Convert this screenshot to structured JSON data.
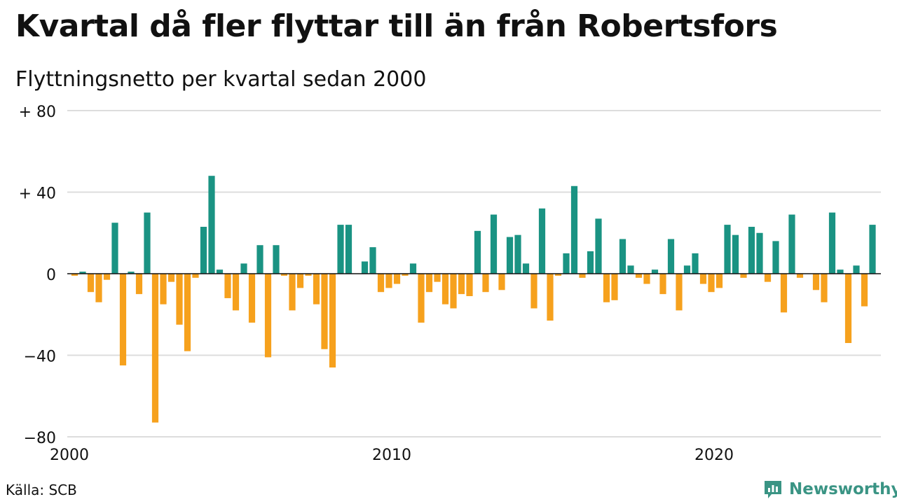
{
  "title": "Kvartal då fler flyttar till än från Robertsfors",
  "subtitle": "Flyttningsnetto per kvartal sedan 2000",
  "source": "Källa: SCB",
  "brand": {
    "name": "Newsworthy",
    "icon": "newsworthy-logo-icon"
  },
  "colors": {
    "positive": "#1a9383",
    "negative": "#f6a11d",
    "grid": "#dddddd",
    "zero_line": "#111111"
  },
  "chart_data": {
    "type": "bar",
    "title": "Kvartal då fler flyttar till än från Robertsfors",
    "subtitle": "Flyttningsnetto per kvartal sedan 2000",
    "x_start": "2000 Q1",
    "frequency": "quarterly",
    "x_ticks": [
      "2000",
      "2010",
      "2020"
    ],
    "y_ticks": [
      "+ 80",
      "+ 40",
      "0",
      "−40",
      "−80"
    ],
    "y_tick_values": [
      80,
      40,
      0,
      -40,
      -80
    ],
    "ylim": [
      -80,
      80
    ],
    "grid": true,
    "values": [
      -1,
      1,
      -9,
      -14,
      -3,
      25,
      -45,
      1,
      -10,
      30,
      -73,
      -15,
      -4,
      -25,
      -38,
      -2,
      23,
      48,
      2,
      -12,
      -18,
      5,
      -24,
      14,
      -41,
      14,
      -1,
      -18,
      -7,
      -1,
      -15,
      -37,
      -46,
      24,
      24,
      0,
      6,
      13,
      -9,
      -7,
      -5,
      -1,
      5,
      -24,
      -9,
      -4,
      -15,
      -17,
      -10,
      -11,
      21,
      -9,
      29,
      -8,
      18,
      19,
      5,
      -17,
      32,
      -23,
      -1,
      10,
      43,
      -2,
      11,
      27,
      -14,
      -13,
      17,
      4,
      -2,
      -5,
      2,
      -10,
      17,
      -18,
      4,
      10,
      -5,
      -9,
      -7,
      24,
      19,
      -2,
      23,
      20,
      -4,
      16,
      -19,
      29,
      -2,
      0,
      -8,
      -14,
      30,
      2,
      -34,
      4,
      -16,
      24
    ]
  }
}
